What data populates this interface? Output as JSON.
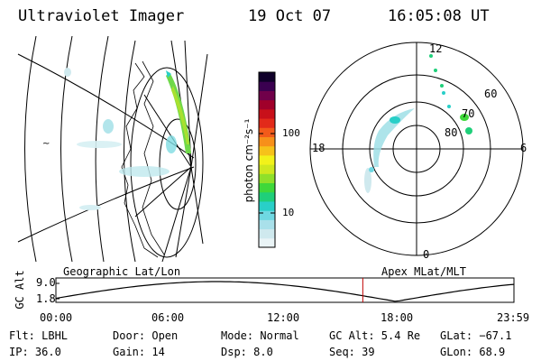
{
  "header": {
    "instrument": "Ultraviolet Imager",
    "date": "19 Oct 07",
    "time": "16:05:08 UT"
  },
  "colorbar": {
    "unit_label": "photon cm⁻²s⁻¹",
    "ticks": [
      "100",
      "10"
    ],
    "colors": [
      "#eaf4f6",
      "#cfe9ee",
      "#a9e0ea",
      "#6fd8e2",
      "#29cfc8",
      "#1fcf7a",
      "#3fd83a",
      "#8fe02a",
      "#cfe81f",
      "#f2f21a",
      "#f6c21a",
      "#f7901a",
      "#f25a1a",
      "#e22a1a",
      "#c8101a",
      "#a0002a",
      "#70004a",
      "#3a0050",
      "#10002a"
    ]
  },
  "polar": {
    "mlt_labels": [
      "12",
      "18",
      "6",
      "0"
    ],
    "lat_labels": [
      "60",
      "70",
      "80"
    ]
  },
  "panel_labels": {
    "left": "Geographic Lat/Lon",
    "right": "Apex MLat/MLT"
  },
  "altitude_plot": {
    "axis_label": "GC Alt",
    "y_ticks": [
      "9.0",
      "1.8"
    ],
    "x_ticks": [
      "00:00",
      "06:00",
      "12:00",
      "18:00",
      "23:59"
    ],
    "current_marker_fraction": 0.67
  },
  "info": {
    "filter": "Flt: LBHL",
    "ip": "IP: 36.0",
    "door": "Door: Open",
    "gain": "Gain: 14",
    "mode": "Mode: Normal",
    "dsp": "Dsp:    8.0",
    "gc_alt": "GC Alt: 5.4 Re",
    "seq": "Seq: 39",
    "glat": "GLat: −67.1",
    "glon": "GLon:  68.9"
  }
}
